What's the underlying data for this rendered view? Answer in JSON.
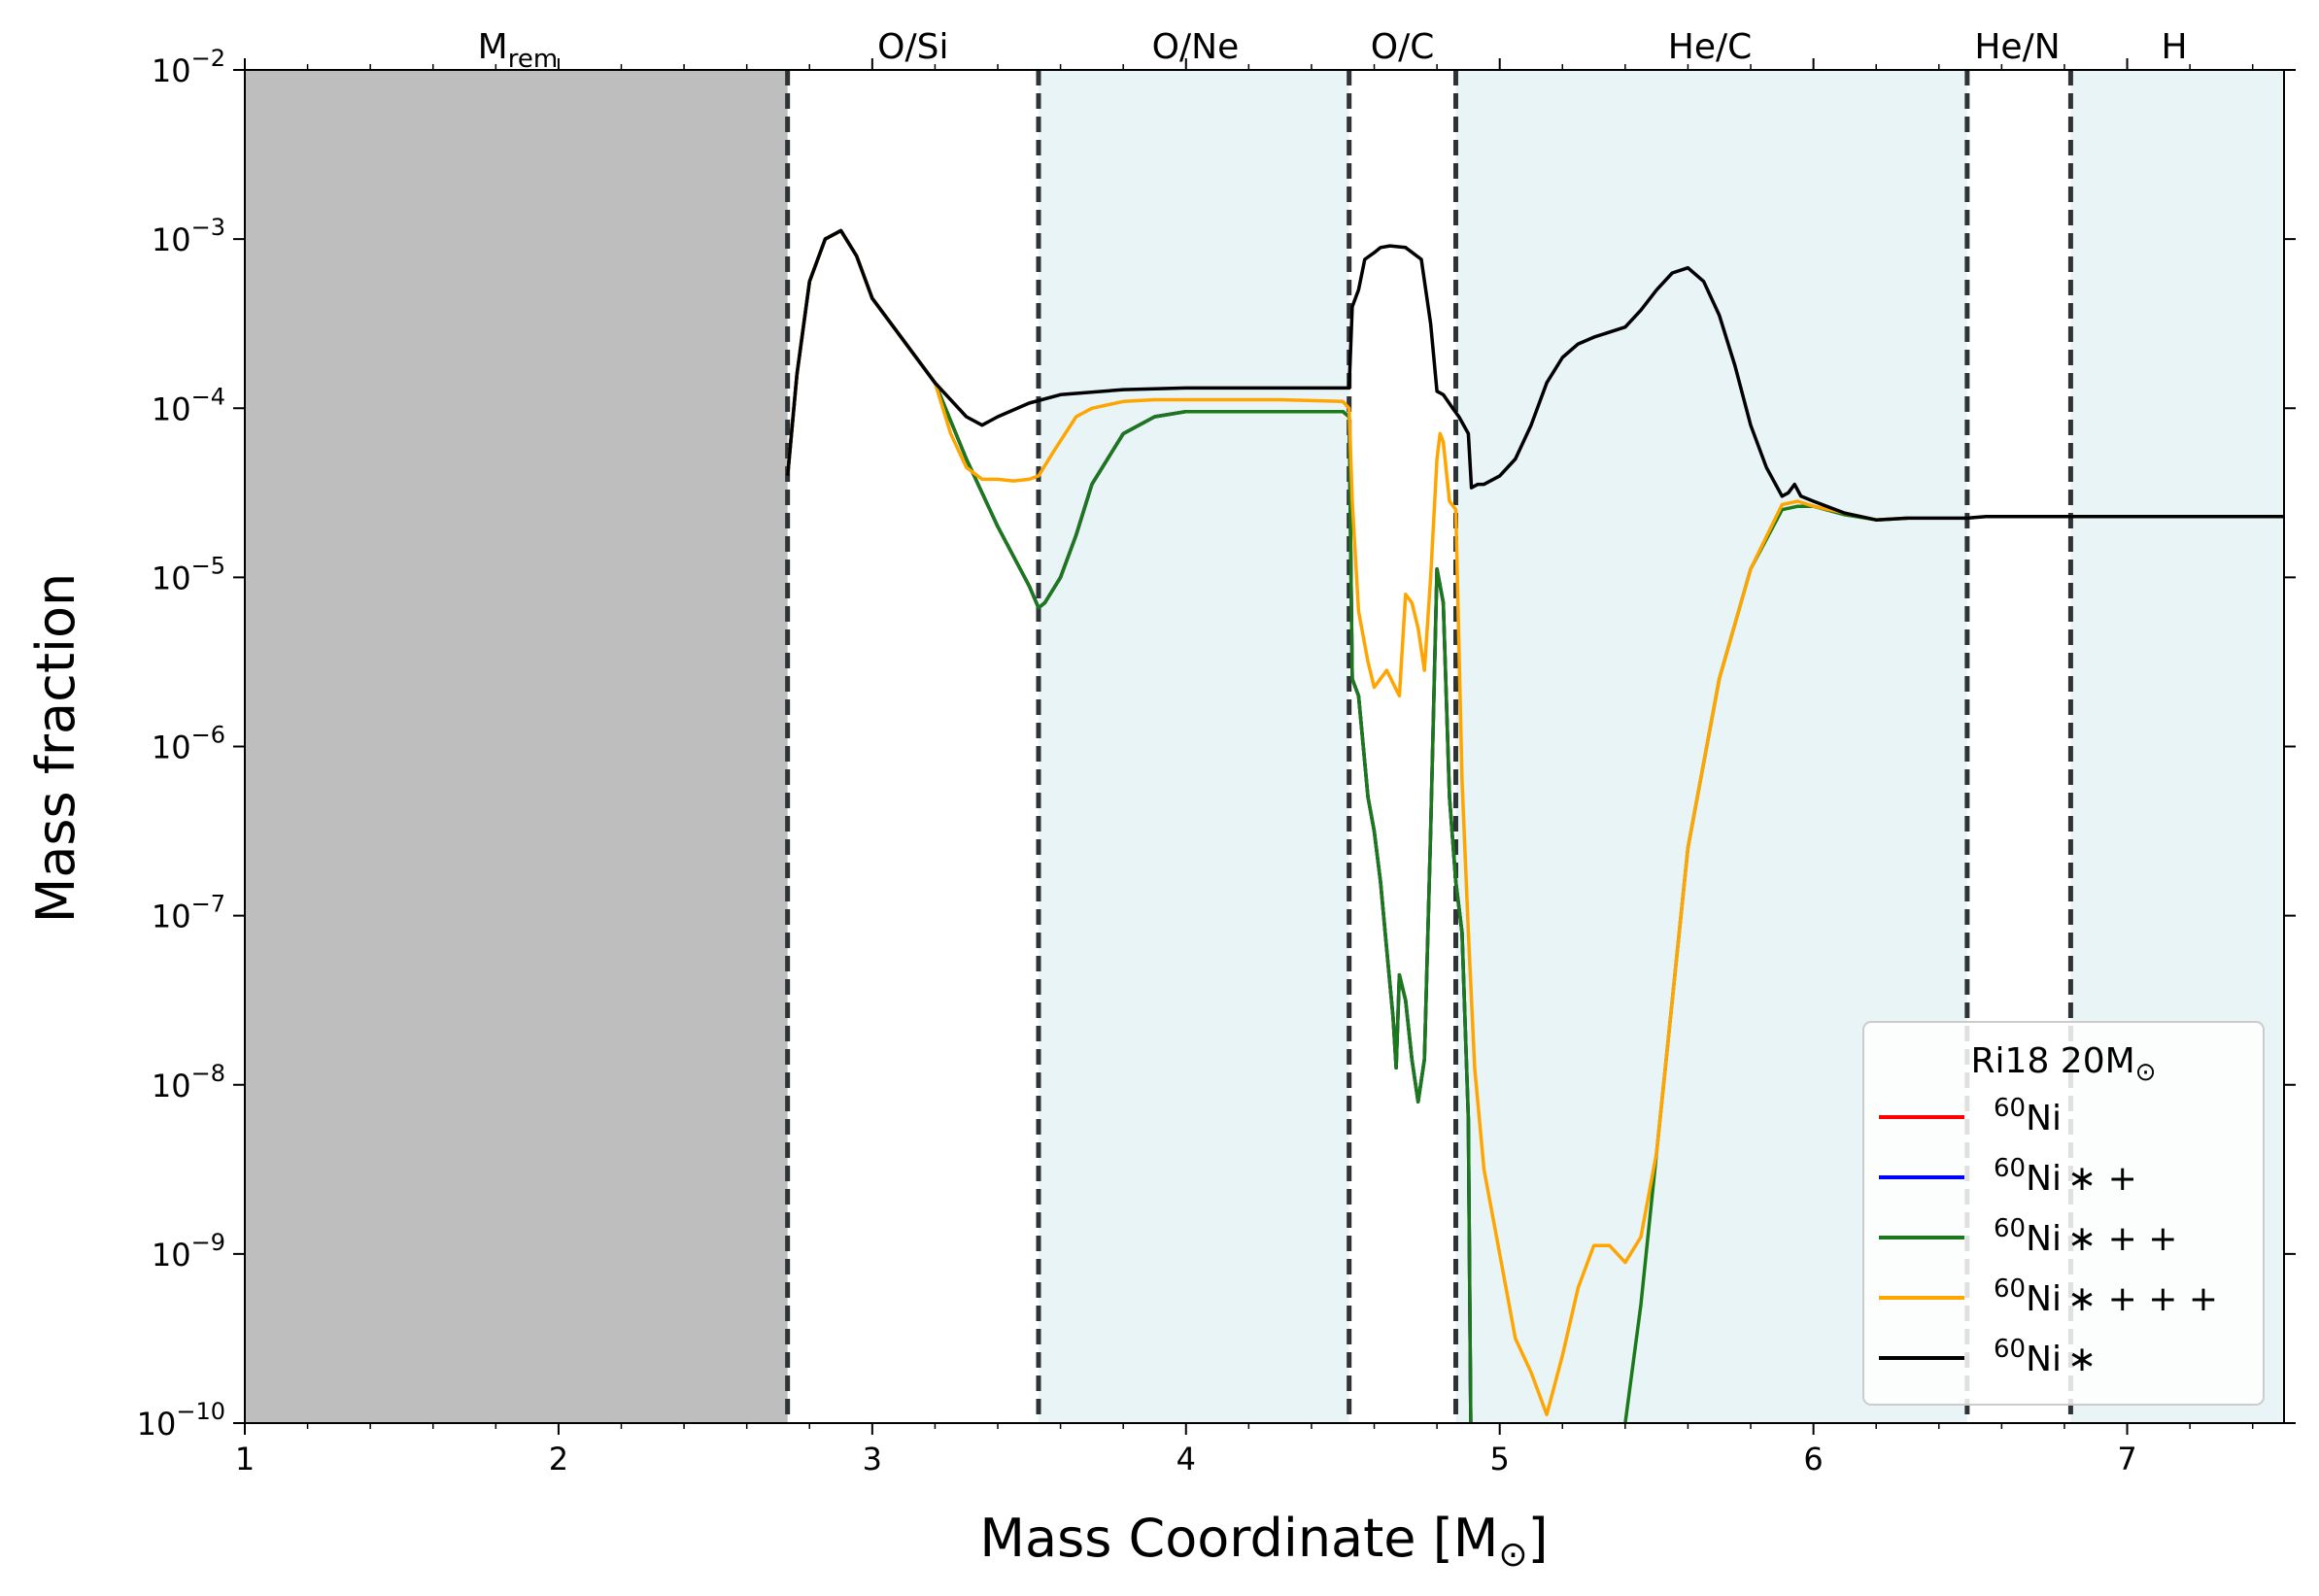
{
  "chart_data": {
    "type": "line",
    "xlabel": "Mass Coordinate [M",
    "xlabel_sub": "⊙",
    "xlabel_tail": "]",
    "ylabel": "Mass fraction",
    "xlim": [
      1,
      7.5
    ],
    "ylim_exp": [
      -10,
      -2
    ],
    "y_scale": "log",
    "x_ticks": [
      1,
      2,
      3,
      4,
      5,
      6,
      7
    ],
    "x_tick_labels": [
      "1",
      "2",
      "3",
      "4",
      "5",
      "6",
      "7"
    ],
    "y_tick_exps": [
      -10,
      -9,
      -8,
      -7,
      -6,
      -5,
      -4,
      -3,
      -2
    ],
    "y_tick_labels": [
      {
        "base": "10",
        "exp": "−10"
      },
      {
        "base": "10",
        "exp": "−9"
      },
      {
        "base": "10",
        "exp": "−8"
      },
      {
        "base": "10",
        "exp": "−7"
      },
      {
        "base": "10",
        "exp": "−6"
      },
      {
        "base": "10",
        "exp": "−5"
      },
      {
        "base": "10",
        "exp": "−4"
      },
      {
        "base": "10",
        "exp": "−3"
      },
      {
        "base": "10",
        "exp": "−2"
      }
    ],
    "remnant": {
      "x0": 1,
      "x1": 2.73,
      "color": "#bebebe"
    },
    "shells": [
      {
        "x0": 3.53,
        "x1": 4.52,
        "color": "#e8f4f6"
      },
      {
        "x0": 4.86,
        "x1": 6.49,
        "color": "#e8f4f6"
      },
      {
        "x0": 6.82,
        "x1": 7.5,
        "color": "#e8f4f6"
      }
    ],
    "boundaries": [
      2.73,
      3.53,
      4.52,
      4.86,
      6.49,
      6.82
    ],
    "zones": [
      {
        "label": "M",
        "sub": "rem",
        "x": 1.87
      },
      {
        "label": "O/Si",
        "sub": "",
        "x": 3.13
      },
      {
        "label": "O/Ne",
        "sub": "",
        "x": 4.03
      },
      {
        "label": "O/C",
        "sub": "",
        "x": 4.69
      },
      {
        "label": "He/C",
        "sub": "",
        "x": 5.67
      },
      {
        "label": "He/N",
        "sub": "",
        "x": 6.65
      },
      {
        "label": "H",
        "sub": "",
        "x": 7.15
      }
    ],
    "legend": {
      "title": "Ri18 20M",
      "title_sub": "⊙",
      "location": "lower right",
      "entries": [
        {
          "iso": "60",
          "label": "Ni",
          "suffix": "",
          "color": "#ff0000"
        },
        {
          "iso": "60",
          "label": "Ni",
          "suffix": "∗ +",
          "color": "#0000ff"
        },
        {
          "iso": "60",
          "label": "Ni",
          "suffix": "∗ + +",
          "color": "#1a7a1a"
        },
        {
          "iso": "60",
          "label": "Ni",
          "suffix": "∗ + + +",
          "color": "#ffa500"
        },
        {
          "iso": "60",
          "label": "Ni",
          "suffix": "∗",
          "color": "#000000"
        }
      ]
    },
    "series": [
      {
        "name": "60Ni",
        "color": "#ff0000",
        "x": [
          2.73,
          2.76,
          2.8,
          2.85,
          2.9,
          2.95,
          3.0,
          3.1,
          3.2,
          3.3,
          3.4,
          3.5,
          3.53,
          3.55,
          3.6,
          3.65,
          3.7,
          3.8,
          3.9,
          4.0,
          4.1,
          4.3,
          4.5,
          4.52,
          4.53,
          4.55,
          4.58,
          4.6,
          4.62,
          4.64,
          4.66,
          4.67,
          4.68,
          4.7,
          4.72,
          4.74,
          4.76,
          4.78,
          4.8,
          4.82,
          4.84,
          4.86,
          4.88,
          4.9,
          4.91,
          4.92
        ],
        "y_log": [
          -4.4,
          -3.8,
          -3.25,
          -3.0,
          -2.95,
          -3.1,
          -3.35,
          -3.6,
          -3.85,
          -4.3,
          -4.7,
          -5.05,
          -5.18,
          -5.15,
          -5.0,
          -4.75,
          -4.45,
          -4.15,
          -4.05,
          -4.02,
          -4.02,
          -4.02,
          -4.02,
          -4.05,
          -5.6,
          -5.7,
          -6.3,
          -6.5,
          -6.8,
          -7.2,
          -7.6,
          -7.9,
          -7.35,
          -7.5,
          -7.85,
          -8.1,
          -7.85,
          -6.5,
          -4.95,
          -5.15,
          -6.3,
          -6.8,
          -7.1,
          -8.2,
          -10.5,
          -10.5
        ]
      },
      {
        "name": "60Ni*+",
        "color": "#0000ff",
        "x": [
          2.73,
          2.76,
          2.8,
          2.85,
          2.9,
          2.95,
          3.0,
          3.1,
          3.2,
          3.3,
          3.4,
          3.5,
          3.53,
          3.55,
          3.6,
          3.65,
          3.7,
          3.8,
          3.9,
          4.0,
          4.1,
          4.3,
          4.5,
          4.52,
          4.53,
          4.55,
          4.58,
          4.6,
          4.62,
          4.64,
          4.66,
          4.67,
          4.68,
          4.7,
          4.72,
          4.74,
          4.76,
          4.78,
          4.8,
          4.82,
          4.84,
          4.86,
          4.88,
          4.9,
          4.91,
          4.92
        ],
        "y_log": [
          -4.4,
          -3.8,
          -3.25,
          -3.0,
          -2.95,
          -3.1,
          -3.35,
          -3.6,
          -3.85,
          -4.3,
          -4.7,
          -5.05,
          -5.18,
          -5.15,
          -5.0,
          -4.75,
          -4.45,
          -4.15,
          -4.05,
          -4.02,
          -4.02,
          -4.02,
          -4.02,
          -4.05,
          -5.6,
          -5.7,
          -6.3,
          -6.5,
          -6.8,
          -7.2,
          -7.6,
          -7.9,
          -7.35,
          -7.5,
          -7.85,
          -8.1,
          -7.85,
          -6.5,
          -4.95,
          -5.15,
          -6.3,
          -6.8,
          -7.1,
          -8.2,
          -10.5,
          -10.5
        ]
      },
      {
        "name": "60Ni*++",
        "color": "#1a7a1a",
        "x": [
          2.73,
          2.76,
          2.8,
          2.85,
          2.9,
          2.95,
          3.0,
          3.1,
          3.2,
          3.3,
          3.4,
          3.5,
          3.53,
          3.55,
          3.6,
          3.65,
          3.7,
          3.8,
          3.9,
          4.0,
          4.1,
          4.3,
          4.5,
          4.52,
          4.53,
          4.55,
          4.58,
          4.6,
          4.62,
          4.64,
          4.66,
          4.67,
          4.68,
          4.7,
          4.72,
          4.74,
          4.76,
          4.78,
          4.8,
          4.82,
          4.84,
          4.86,
          4.88,
          4.9,
          4.91,
          4.92,
          5.4,
          5.45,
          5.5,
          5.6,
          5.7,
          5.8,
          5.9,
          5.95,
          6.0,
          6.1,
          6.2,
          6.3
        ],
        "y_log": [
          -4.4,
          -3.8,
          -3.25,
          -3.0,
          -2.95,
          -3.1,
          -3.35,
          -3.6,
          -3.85,
          -4.3,
          -4.7,
          -5.05,
          -5.18,
          -5.15,
          -5.0,
          -4.75,
          -4.45,
          -4.15,
          -4.05,
          -4.02,
          -4.02,
          -4.02,
          -4.02,
          -4.05,
          -5.6,
          -5.7,
          -6.3,
          -6.5,
          -6.8,
          -7.2,
          -7.6,
          -7.9,
          -7.35,
          -7.5,
          -7.85,
          -8.1,
          -7.85,
          -6.5,
          -4.95,
          -5.15,
          -6.3,
          -6.8,
          -7.1,
          -8.2,
          -10.5,
          -10.5,
          -10.0,
          -9.3,
          -8.4,
          -6.6,
          -5.6,
          -4.95,
          -4.6,
          -4.58,
          -4.58,
          -4.63,
          -4.66,
          -4.65
        ]
      },
      {
        "name": "60Ni*+++",
        "color": "#ffa500",
        "x": [
          2.73,
          2.76,
          2.8,
          2.85,
          2.9,
          2.95,
          3.0,
          3.1,
          3.2,
          3.25,
          3.3,
          3.35,
          3.4,
          3.45,
          3.5,
          3.53,
          3.58,
          3.65,
          3.7,
          3.8,
          3.9,
          4.0,
          4.1,
          4.3,
          4.5,
          4.52,
          4.53,
          4.55,
          4.58,
          4.6,
          4.64,
          4.68,
          4.7,
          4.72,
          4.74,
          4.76,
          4.78,
          4.8,
          4.81,
          4.82,
          4.84,
          4.86,
          4.88,
          4.9,
          4.92,
          4.95,
          5.0,
          5.05,
          5.1,
          5.15,
          5.2,
          5.25,
          5.3,
          5.35,
          5.4,
          5.45,
          5.5,
          5.6,
          5.7,
          5.8,
          5.9,
          5.95,
          6.0,
          6.1,
          6.2,
          6.3
        ],
        "y_log": [
          -4.4,
          -3.8,
          -3.25,
          -3.0,
          -2.95,
          -3.1,
          -3.35,
          -3.6,
          -3.85,
          -4.15,
          -4.35,
          -4.42,
          -4.42,
          -4.43,
          -4.42,
          -4.4,
          -4.25,
          -4.05,
          -4.0,
          -3.96,
          -3.95,
          -3.95,
          -3.95,
          -3.95,
          -3.96,
          -4.0,
          -4.55,
          -5.2,
          -5.5,
          -5.65,
          -5.55,
          -5.7,
          -5.1,
          -5.15,
          -5.3,
          -5.55,
          -5.0,
          -4.3,
          -4.15,
          -4.2,
          -4.55,
          -4.6,
          -6.2,
          -7.1,
          -7.9,
          -8.5,
          -9.0,
          -9.5,
          -9.7,
          -9.95,
          -9.6,
          -9.2,
          -8.95,
          -8.95,
          -9.05,
          -8.9,
          -8.4,
          -6.6,
          -5.6,
          -4.95,
          -4.57,
          -4.55,
          -4.58,
          -4.62,
          -4.66,
          -4.65
        ]
      },
      {
        "name": "60Ni*",
        "color": "#000000",
        "x": [
          2.73,
          2.76,
          2.8,
          2.85,
          2.9,
          2.95,
          3.0,
          3.1,
          3.2,
          3.3,
          3.35,
          3.4,
          3.5,
          3.6,
          3.8,
          4.0,
          4.2,
          4.4,
          4.52,
          4.53,
          4.55,
          4.57,
          4.6,
          4.62,
          4.65,
          4.7,
          4.75,
          4.78,
          4.8,
          4.82,
          4.85,
          4.87,
          4.9,
          4.91,
          4.93,
          4.95,
          5.0,
          5.05,
          5.1,
          5.15,
          5.2,
          5.25,
          5.3,
          5.4,
          5.45,
          5.5,
          5.55,
          5.6,
          5.65,
          5.7,
          5.75,
          5.8,
          5.85,
          5.9,
          5.92,
          5.94,
          5.96,
          6.0,
          6.1,
          6.2,
          6.3,
          6.49,
          6.55,
          6.82,
          7.0,
          7.2,
          7.5
        ],
        "y_log": [
          -4.4,
          -3.8,
          -3.25,
          -3.0,
          -2.95,
          -3.1,
          -3.35,
          -3.6,
          -3.85,
          -4.05,
          -4.1,
          -4.05,
          -3.97,
          -3.92,
          -3.89,
          -3.88,
          -3.88,
          -3.88,
          -3.88,
          -3.4,
          -3.3,
          -3.12,
          -3.08,
          -3.05,
          -3.04,
          -3.05,
          -3.12,
          -3.5,
          -3.9,
          -3.92,
          -4.0,
          -4.05,
          -4.15,
          -4.47,
          -4.45,
          -4.45,
          -4.4,
          -4.3,
          -4.1,
          -3.85,
          -3.7,
          -3.62,
          -3.58,
          -3.52,
          -3.42,
          -3.3,
          -3.2,
          -3.17,
          -3.25,
          -3.45,
          -3.75,
          -4.1,
          -4.35,
          -4.52,
          -4.5,
          -4.45,
          -4.52,
          -4.55,
          -4.62,
          -4.66,
          -4.65,
          -4.65,
          -4.64,
          -4.64,
          -4.64,
          -4.64,
          -4.64
        ]
      }
    ]
  }
}
